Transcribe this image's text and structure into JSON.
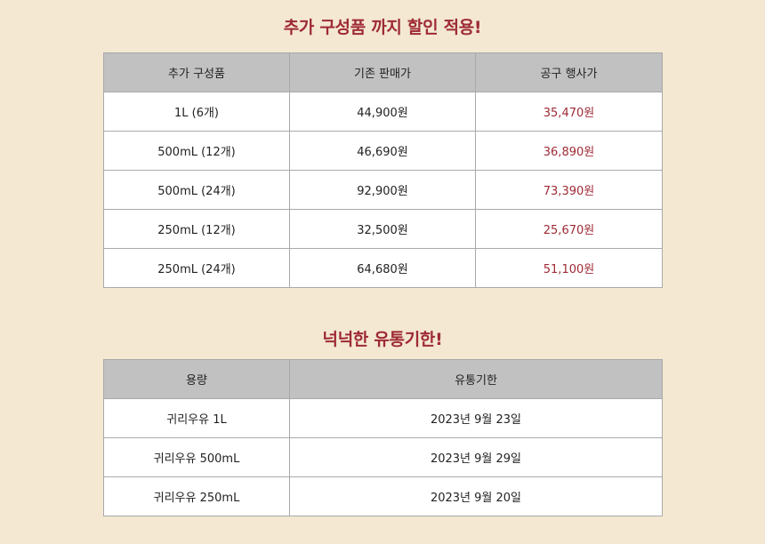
{
  "section1": {
    "title": "추가 구성품 까지 할인 적용!",
    "headers": [
      "추가 구성품",
      "기존 판매가",
      "공구 행사가"
    ],
    "rows": [
      [
        "1L (6개)",
        "44,900원",
        "35,470원"
      ],
      [
        "500mL (12개)",
        "46,690원",
        "36,890원"
      ],
      [
        "500mL (24개)",
        "92,900원",
        "73,390원"
      ],
      [
        "250mL (12개)",
        "32,500원",
        "25,670원"
      ],
      [
        "250mL (24개)",
        "64,680원",
        "51,100원"
      ]
    ]
  },
  "section2": {
    "title": "넉넉한 유통기한!",
    "headers": [
      "용량",
      "유통기한"
    ],
    "rows": [
      [
        "귀리우유 1L",
        "2023년 9월 23일"
      ],
      [
        "귀리우유 500mL",
        "2023년 9월 29일"
      ],
      [
        "귀리우유 250mL",
        "2023년 9월 20일"
      ]
    ]
  },
  "colors": {
    "background": "#f4e8d2",
    "accent": "#9e2a35",
    "header_bg": "#c1c1c1"
  }
}
